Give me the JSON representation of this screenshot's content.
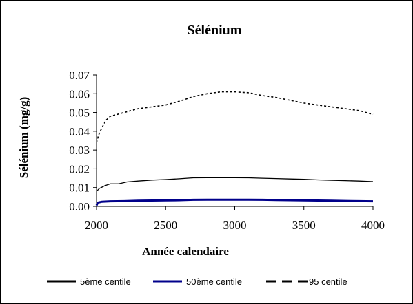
{
  "chart_data": {
    "type": "line",
    "title": "Sélénium",
    "xlabel": "Année calendaire",
    "ylabel": "Sélénium (mg/g)",
    "xlim": [
      2000,
      4000
    ],
    "ylim": [
      0,
      0.07
    ],
    "x_ticks": [
      2000,
      2500,
      3000,
      3500,
      4000
    ],
    "y_ticks": [
      0.0,
      0.01,
      0.02,
      0.03,
      0.04,
      0.05,
      0.06,
      0.07
    ],
    "y_tick_labels": [
      "0.00",
      "0.01",
      "0.02",
      "0.03",
      "0.04",
      "0.05",
      "0.06",
      "0.07"
    ],
    "grid": false,
    "legend_position": "bottom",
    "series": [
      {
        "name": "5ème centile",
        "color": "#000000",
        "style": "solid",
        "x": [
          2000,
          2020,
          2060,
          2100,
          2160,
          2220,
          2300,
          2400,
          2500,
          2600,
          2700,
          2800,
          2900,
          3000,
          3100,
          3200,
          3300,
          3400,
          3500,
          3600,
          3700,
          3800,
          3900,
          4000
        ],
        "y": [
          0.008,
          0.0095,
          0.011,
          0.012,
          0.012,
          0.013,
          0.0135,
          0.014,
          0.0143,
          0.0147,
          0.0152,
          0.0153,
          0.0153,
          0.0153,
          0.0152,
          0.015,
          0.0148,
          0.0146,
          0.0144,
          0.0141,
          0.0139,
          0.0137,
          0.0135,
          0.0132
        ]
      },
      {
        "name": "50ème centile",
        "color": "#00008b",
        "style": "solid",
        "x": [
          2000,
          2010,
          2040,
          2100,
          2200,
          2300,
          2400,
          2500,
          2600,
          2700,
          2800,
          2900,
          3000,
          3100,
          3200,
          3300,
          3400,
          3500,
          3600,
          3700,
          3800,
          3900,
          4000
        ],
        "y": [
          0.0005,
          0.002,
          0.0025,
          0.0027,
          0.0028,
          0.003,
          0.0031,
          0.0032,
          0.0033,
          0.0035,
          0.0036,
          0.0036,
          0.0036,
          0.0036,
          0.0035,
          0.0034,
          0.0033,
          0.0032,
          0.0031,
          0.003,
          0.0029,
          0.0028,
          0.0027
        ]
      },
      {
        "name": "95 centile",
        "color": "#000000",
        "style": "dashed",
        "x": [
          2000,
          2015,
          2040,
          2070,
          2100,
          2150,
          2200,
          2300,
          2400,
          2500,
          2600,
          2700,
          2800,
          2900,
          3000,
          3100,
          3200,
          3300,
          3400,
          3500,
          3600,
          3700,
          3800,
          3900,
          4000
        ],
        "y": [
          0.034,
          0.038,
          0.042,
          0.046,
          0.048,
          0.049,
          0.05,
          0.052,
          0.053,
          0.054,
          0.056,
          0.0585,
          0.06,
          0.061,
          0.061,
          0.0605,
          0.059,
          0.058,
          0.0565,
          0.055,
          0.054,
          0.053,
          0.052,
          0.051,
          0.049
        ]
      }
    ]
  }
}
